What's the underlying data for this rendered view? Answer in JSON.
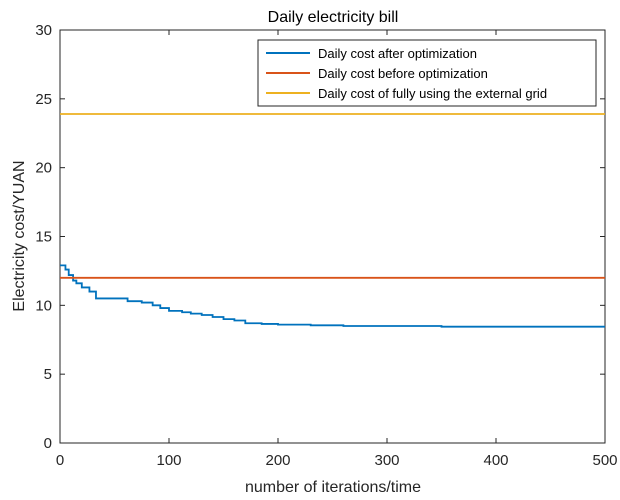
{
  "chart_data": {
    "type": "line",
    "title": "Daily electricity bill",
    "xlabel": "number of iterations/time",
    "ylabel": "Electricity cost/YUAN",
    "xlim": [
      0,
      500
    ],
    "ylim": [
      0,
      30
    ],
    "xticks": [
      0,
      100,
      200,
      300,
      400,
      500
    ],
    "yticks": [
      0,
      5,
      10,
      15,
      20,
      25,
      30
    ],
    "grid": false,
    "legend_position": "top-right",
    "series": [
      {
        "name": "Daily cost after optimization",
        "color": "#0072BD",
        "step": true,
        "x": [
          0,
          5,
          8,
          12,
          15,
          20,
          27,
          33,
          50,
          62,
          75,
          85,
          92,
          100,
          112,
          120,
          130,
          140,
          150,
          160,
          170,
          185,
          200,
          230,
          260,
          300,
          350,
          400,
          450,
          500
        ],
        "y": [
          12.9,
          12.6,
          12.2,
          11.8,
          11.6,
          11.3,
          11.0,
          10.5,
          10.5,
          10.3,
          10.2,
          10.0,
          9.8,
          9.6,
          9.5,
          9.4,
          9.3,
          9.15,
          9.0,
          8.9,
          8.7,
          8.65,
          8.6,
          8.55,
          8.5,
          8.5,
          8.45,
          8.45,
          8.45,
          8.45
        ]
      },
      {
        "name": "Daily cost before optimization",
        "color": "#D95319",
        "step": false,
        "x": [
          0,
          500
        ],
        "y": [
          12.0,
          12.0
        ]
      },
      {
        "name": "Daily cost of fully using the external grid",
        "color": "#EDB120",
        "step": false,
        "x": [
          0,
          500
        ],
        "y": [
          23.9,
          23.9
        ]
      }
    ]
  }
}
